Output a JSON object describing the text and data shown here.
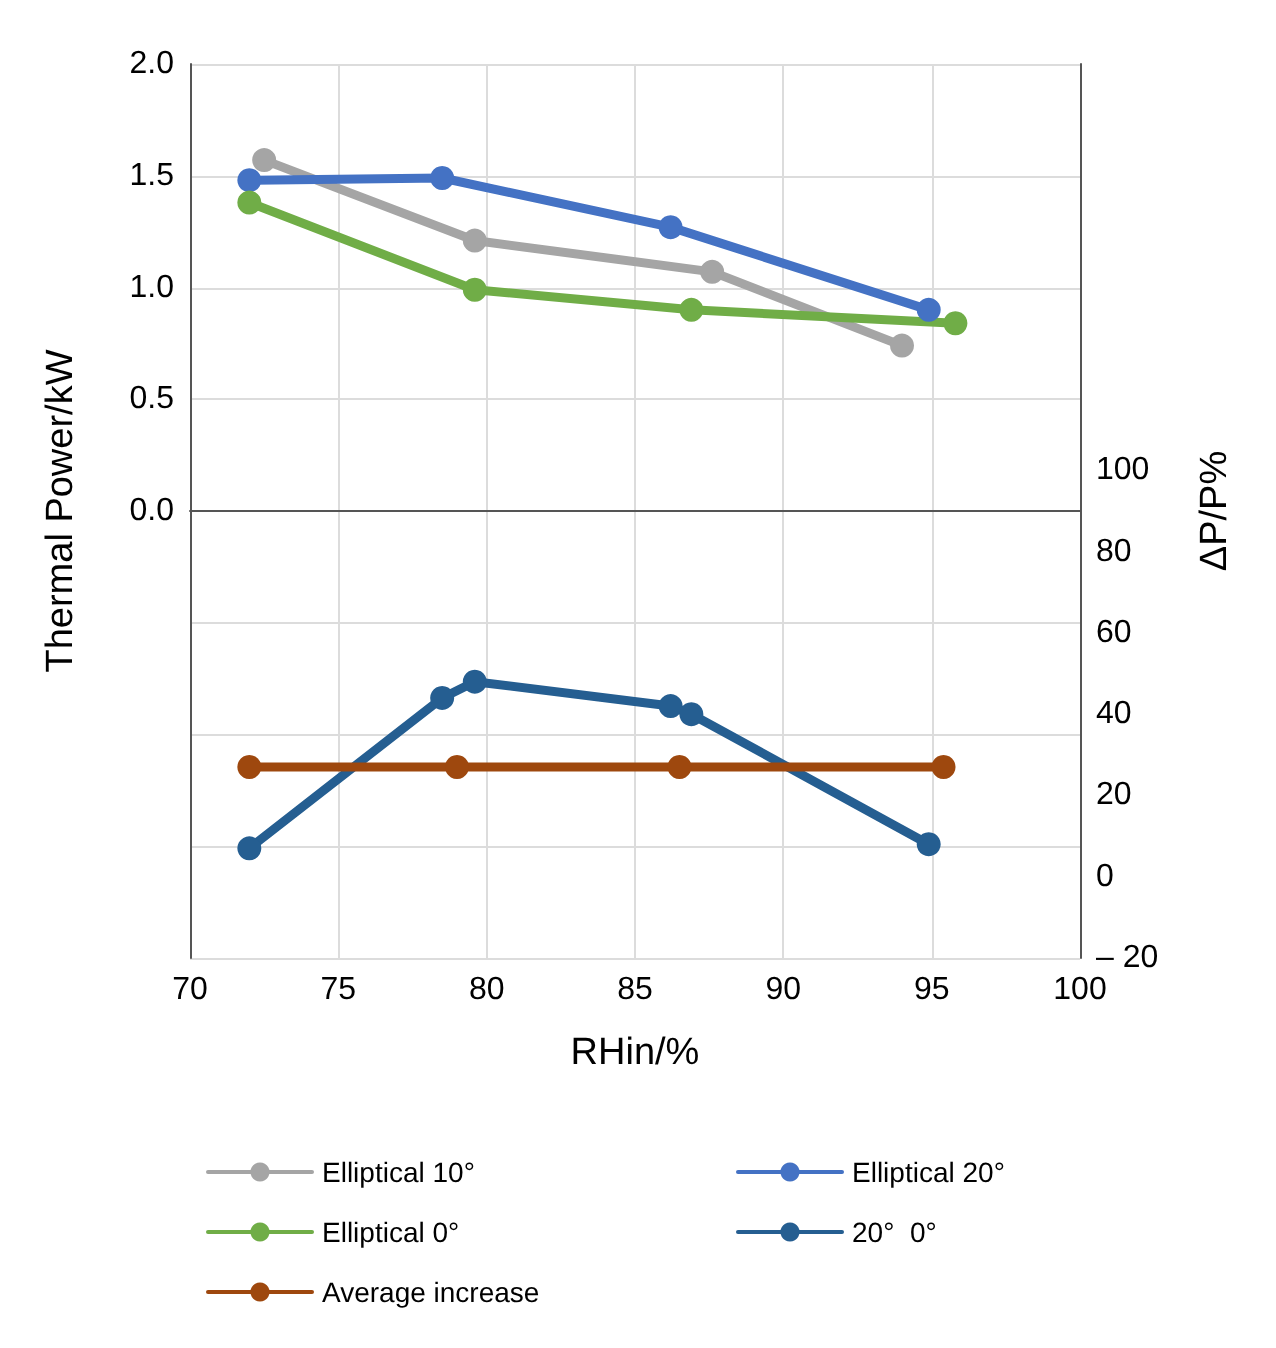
{
  "chart_data": {
    "type": "line",
    "xlabel": "RHin/%",
    "ylabel": "Thermal Power/kW",
    "y2label": "ΔP/P%",
    "xlim": [
      70,
      100
    ],
    "xticks": [
      70,
      75,
      80,
      85,
      90,
      95,
      100
    ],
    "ylim": [
      -2,
      2
    ],
    "yticks": [
      {
        "value": 0,
        "label": "0.0"
      },
      {
        "value": 0.5,
        "label": "0.5"
      },
      {
        "value": 1,
        "label": "1.0"
      },
      {
        "value": 1.5,
        "label": "1.5"
      },
      {
        "value": 2,
        "label": "2.0"
      }
    ],
    "y2lim": [
      -20,
      200
    ],
    "y2ticks": [
      {
        "value": -20,
        "label": "– 20"
      },
      0,
      20,
      40,
      60,
      80,
      100
    ],
    "grid": true,
    "legend": "bottom",
    "marker": "circle",
    "line_style": "solid",
    "series": [
      {
        "name": "Elliptical 10°",
        "color": "#a5a5a5",
        "x": [
          72.5,
          79.6,
          87.6,
          94.0
        ],
        "values": [
          1.57,
          1.21,
          1.07,
          0.74
        ]
      },
      {
        "name": "Elliptical 20°",
        "color": "#4472c4",
        "x": [
          72.0,
          78.5,
          86.2,
          94.9
        ],
        "values": [
          1.48,
          1.49,
          1.27,
          0.9
        ]
      },
      {
        "name": "Elliptical 0°",
        "color": "#70ad47",
        "x": [
          72.0,
          79.6,
          86.9,
          95.8
        ],
        "values": [
          1.38,
          0.99,
          0.9,
          0.84
        ]
      },
      {
        "name": "20°  0°",
        "color": "#255e91",
        "axis": "y2",
        "x": [
          72.0,
          78.5,
          79.6,
          86.2,
          86.9,
          94.9
        ],
        "values": [
          7,
          44,
          48,
          42,
          40,
          8
        ]
      },
      {
        "name": "Average increase",
        "color": "#9e480e",
        "axis": "y2",
        "x": [
          72.0,
          79.0,
          86.5,
          95.4
        ],
        "values": [
          27,
          27,
          27,
          27
        ]
      }
    ]
  }
}
